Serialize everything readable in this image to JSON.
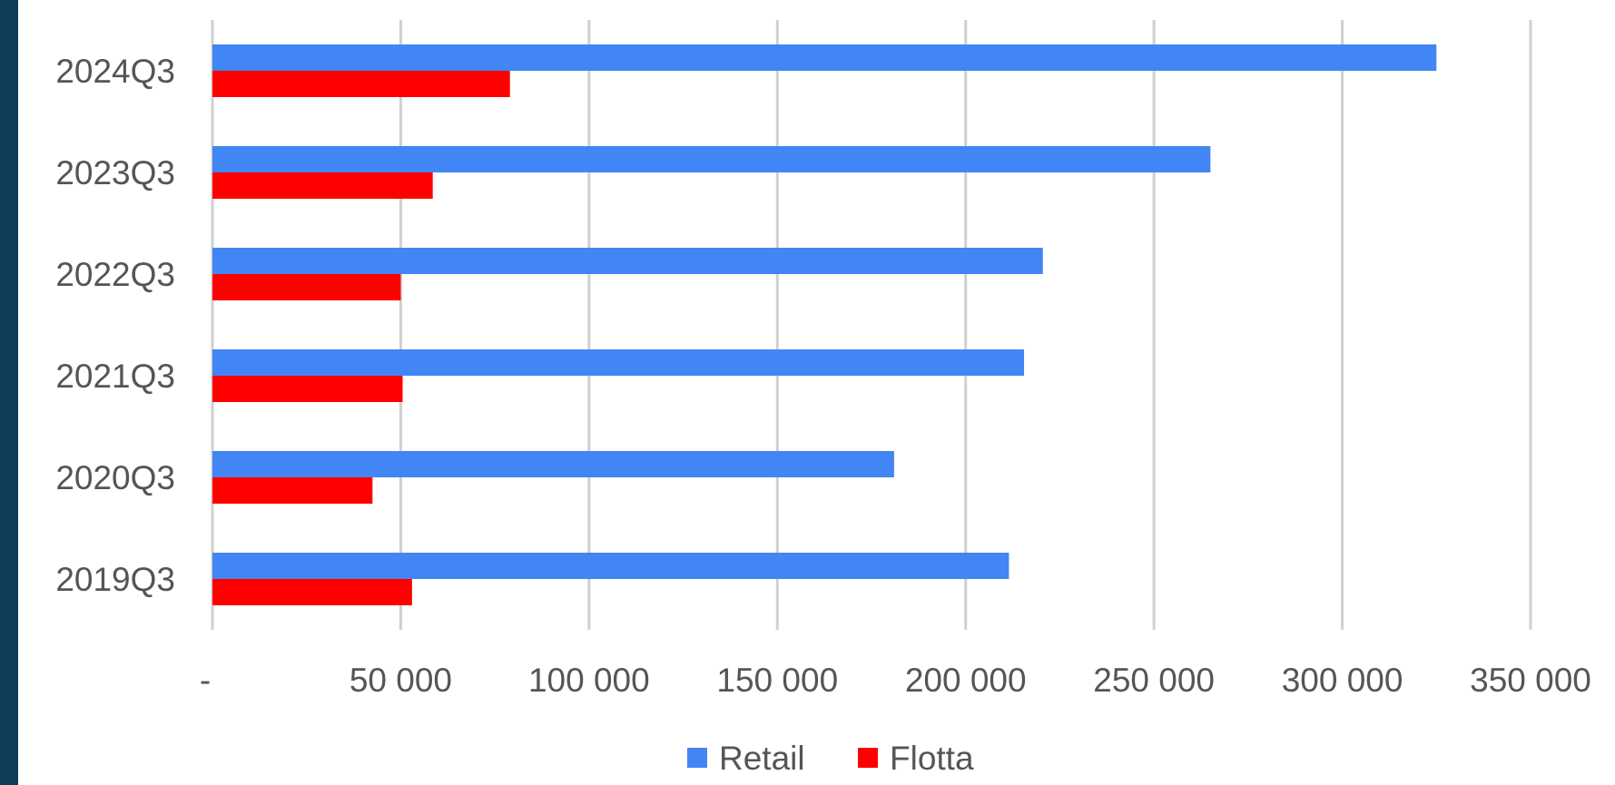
{
  "colors": {
    "frame_stripe": "#0d3d57",
    "grid": "#d0d0d0",
    "retail": "#4285f4",
    "flotta": "#ff0000",
    "text": "#555555"
  },
  "chart_data": {
    "type": "bar",
    "orientation": "horizontal",
    "categories": [
      "2024Q3",
      "2023Q3",
      "2022Q3",
      "2021Q3",
      "2020Q3",
      "2019Q3"
    ],
    "series": [
      {
        "name": "Retail",
        "color": "#4285f4",
        "values": [
          325000,
          265000,
          220500,
          215500,
          181000,
          211500
        ]
      },
      {
        "name": "Flotta",
        "color": "#ff0000",
        "values": [
          79000,
          58500,
          50000,
          50500,
          42500,
          53000
        ]
      }
    ],
    "xlim": [
      0,
      350000
    ],
    "x_ticks": [
      0,
      50000,
      100000,
      150000,
      200000,
      250000,
      300000,
      350000
    ],
    "x_tick_labels": [
      "-",
      "50 000",
      "100 000",
      "150 000",
      "200 000",
      "250 000",
      "300 000",
      "350 000"
    ],
    "grid": "vertical",
    "legend_position": "bottom",
    "title": "",
    "xlabel": "",
    "ylabel": ""
  }
}
